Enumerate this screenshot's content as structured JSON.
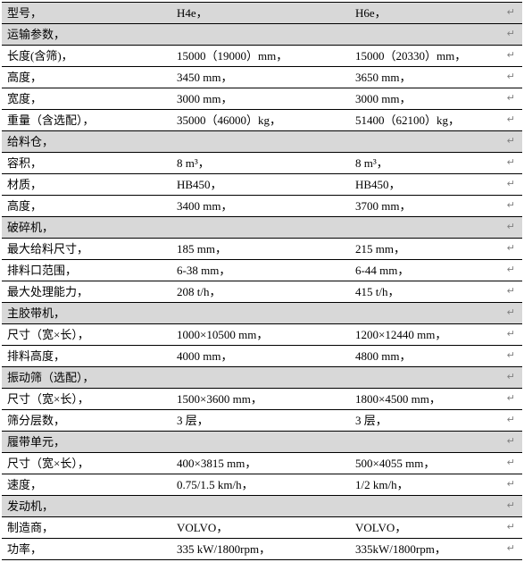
{
  "header": {
    "label": "型号",
    "col1": "H4e",
    "col2": "H6e"
  },
  "sections": [
    {
      "title": "运输参数",
      "rows": [
        {
          "label": "长度(含筛)",
          "v1": "15000（19000）mm",
          "v2": "15000（20330）mm"
        },
        {
          "label": "高度",
          "v1": "3450 mm",
          "v2": "3650 mm"
        },
        {
          "label": "宽度",
          "v1": "3000 mm",
          "v2": "3000 mm"
        },
        {
          "label": "重量（含选配）",
          "v1": "35000（46000）kg",
          "v2": "51400（62100）kg"
        }
      ]
    },
    {
      "title": "给料仓",
      "rows": [
        {
          "label": "容积",
          "v1": "8 m³",
          "v2": "8 m³"
        },
        {
          "label": "材质",
          "v1": "HB450",
          "v2": "HB450"
        },
        {
          "label": "高度",
          "v1": "3400 mm",
          "v2": "3700 mm"
        }
      ]
    },
    {
      "title": "破碎机",
      "rows": [
        {
          "label": "最大给料尺寸",
          "v1": "185 mm",
          "v2": "215 mm"
        },
        {
          "label": "排料口范围",
          "v1": "6-38 mm",
          "v2": "6-44 mm"
        },
        {
          "label": "最大处理能力",
          "v1": "208 t/h",
          "v2": "415 t/h"
        }
      ]
    },
    {
      "title": "主胶带机",
      "rows": [
        {
          "label": "尺寸（宽×长）",
          "v1": "1000×10500 mm",
          "v2": "1200×12440 mm"
        },
        {
          "label": "排料高度",
          "v1": "4000 mm",
          "v2": "4800 mm"
        }
      ]
    },
    {
      "title": "振动筛（选配）",
      "rows": [
        {
          "label": "尺寸（宽×长）",
          "v1": "1500×3600 mm",
          "v2": "1800×4500 mm"
        },
        {
          "label": "筛分层数",
          "v1": "3 层",
          "v2": "3 层"
        }
      ]
    },
    {
      "title": "履带单元",
      "rows": [
        {
          "label": "尺寸（宽×长）",
          "v1": "400×3815 mm",
          "v2": "500×4055 mm"
        },
        {
          "label": "速度",
          "v1": "0.75/1.5 km/h",
          "v2": "1/2 km/h"
        }
      ]
    },
    {
      "title": "发动机",
      "rows": [
        {
          "label": "制造商",
          "v1": "VOLVO",
          "v2": "VOLVO"
        },
        {
          "label": "功率",
          "v1": "335 kW/1800rpm",
          "v2": "335kW/1800rpm"
        }
      ]
    }
  ]
}
